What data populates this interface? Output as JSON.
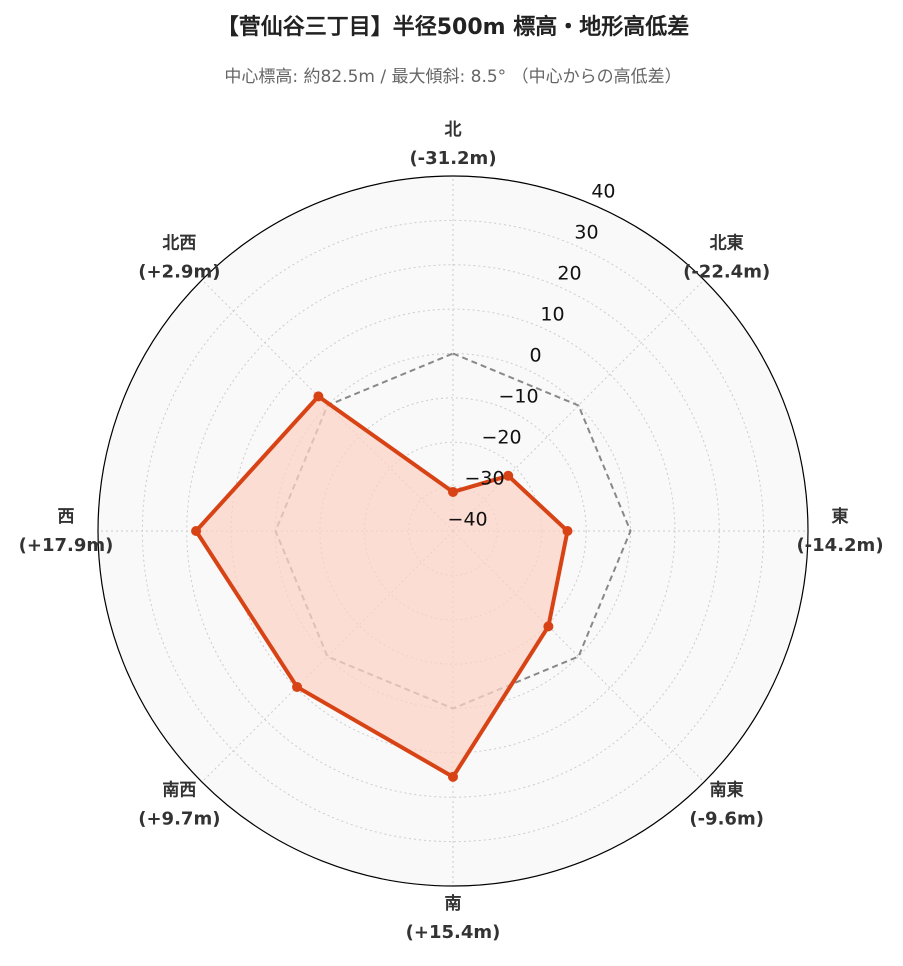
{
  "chart_data": {
    "type": "radar",
    "title": "【菅仙谷三丁目】半径500m 標高・地形高低差",
    "subtitle": "中心標高: 約82.5m / 最大傾斜: 8.5° （中心からの高低差）",
    "categories": [
      "北",
      "北東",
      "東",
      "南東",
      "南",
      "南西",
      "西",
      "北西"
    ],
    "values": [
      -31.2,
      -22.4,
      -14.2,
      -9.6,
      15.4,
      9.7,
      17.9,
      2.9
    ],
    "value_labels": [
      "(-31.2m)",
      "(-22.4m)",
      "(-14.2m)",
      "(-9.6m)",
      "(+15.4m)",
      "(+9.7m)",
      "(+17.9m)",
      "(+2.9m)"
    ],
    "color": "#d84315",
    "fill_color": "#fbd3c7",
    "ylim": [
      -40,
      40
    ],
    "yticks": [
      {
        "value": -40,
        "label": "−40"
      },
      {
        "value": -30,
        "label": "−30"
      },
      {
        "value": -20,
        "label": "−20"
      },
      {
        "value": -10,
        "label": "−10"
      },
      0,
      10,
      20,
      30,
      40
    ],
    "reference_line": {
      "value": 0,
      "color": "#888888"
    },
    "grid": true
  }
}
